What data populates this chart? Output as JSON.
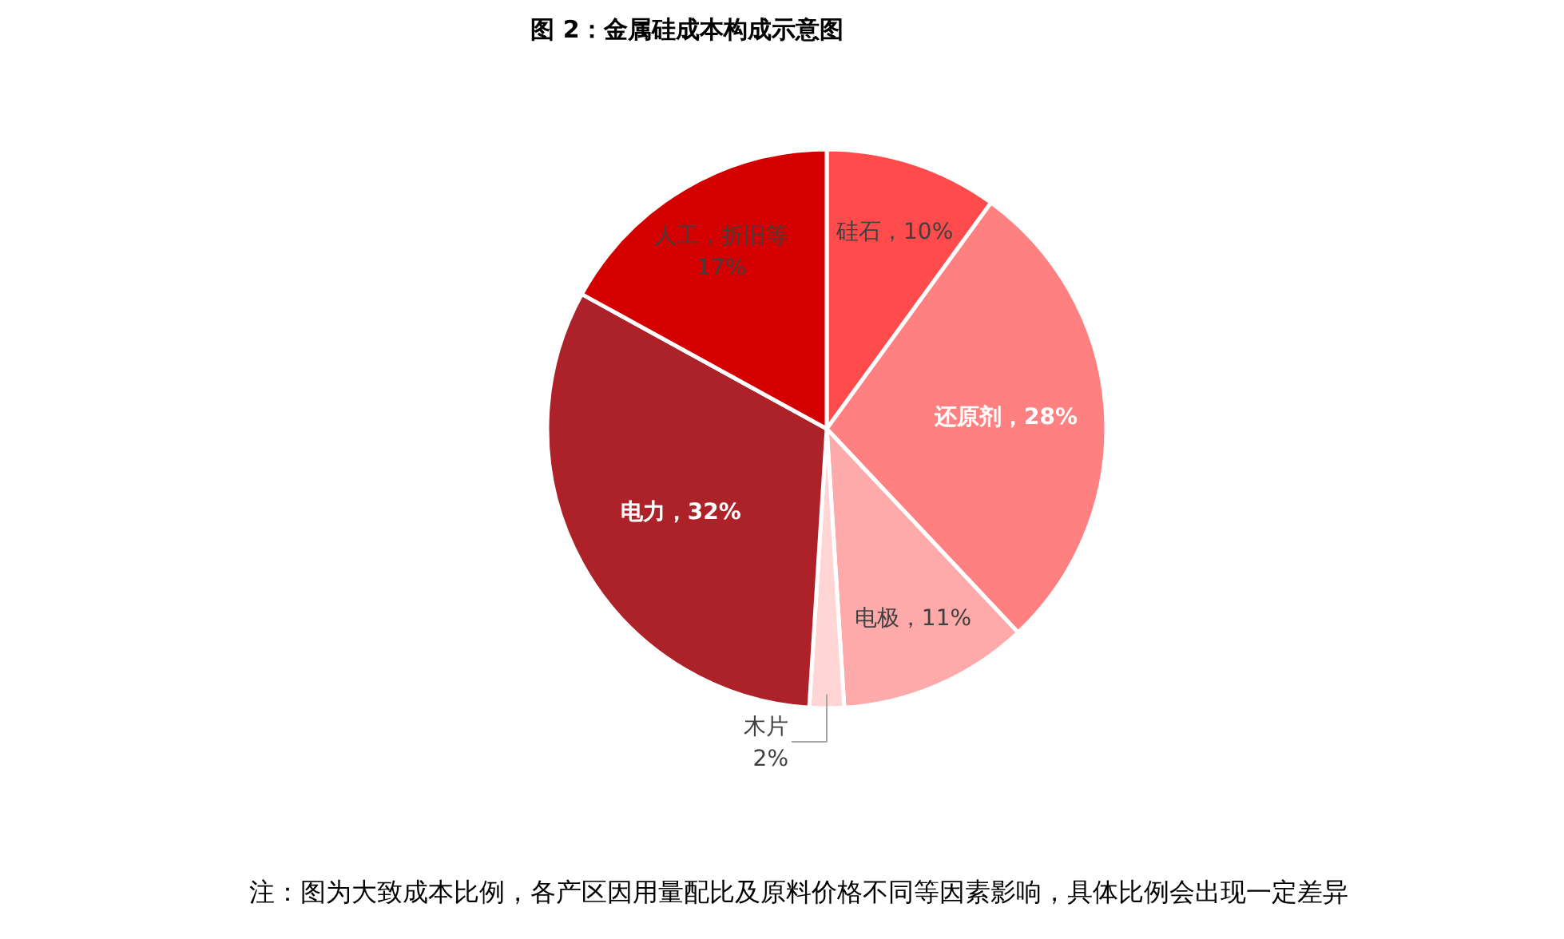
{
  "chart_data": {
    "type": "pie",
    "title": "图 2：金属硅成本构成示意图",
    "categories": [
      "硅石",
      "还原剂",
      "电极",
      "木片",
      "电力",
      "人工，折旧等"
    ],
    "values": [
      10,
      28,
      11,
      2,
      32,
      17
    ],
    "colors": [
      "#ff4b4b",
      "#ff8080",
      "#ffaaaa",
      "#ffd5d5",
      "#ad2129",
      "#d40000"
    ],
    "value_labels": [
      "，10%",
      "，28%",
      "，11%",
      "2%",
      "，32%",
      "17%"
    ],
    "annotations": [
      "注：图为大致成本比例，各产区因用量配比及原料价格不同等因素影响，具体比例会出现一定差异"
    ]
  }
}
